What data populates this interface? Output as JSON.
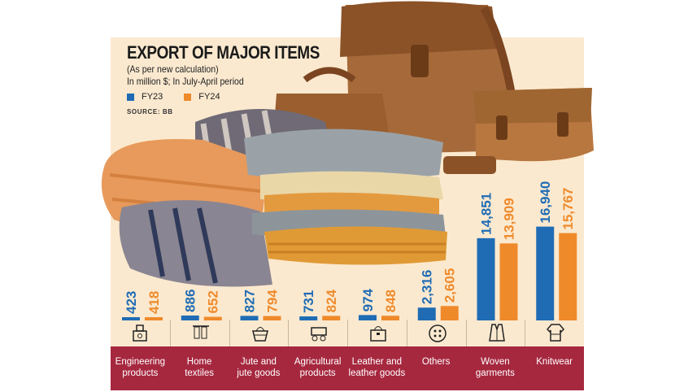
{
  "title": "EXPORT OF MAJOR ITEMS",
  "subtitle_1": "(As per new calculation)",
  "subtitle_2": "In million $; In July-April period",
  "source": "SOURCE: BB",
  "colors": {
    "fy23": "#1f6cb5",
    "fy24": "#ef8a2b",
    "band": "#a6283f",
    "panel": "#fbe9cf"
  },
  "icons": [
    "factory-icon",
    "towel-rack-icon",
    "jute-basket-icon",
    "farm-cart-icon",
    "handbag-icon",
    "button-icon",
    "vest-icon",
    "sweater-icon"
  ],
  "chart_data": {
    "type": "bar",
    "title": "EXPORT OF MAJOR ITEMS",
    "subtitle": "(As per new calculation) In million $; In July-April period",
    "categories_lines": [
      [
        "Engineering",
        "products"
      ],
      [
        "Home",
        "textiles"
      ],
      [
        "Jute and",
        "jute goods"
      ],
      [
        "Agricultural",
        "products"
      ],
      [
        "Leather and",
        "leather goods"
      ],
      [
        "Others"
      ],
      [
        "Woven",
        "garments"
      ],
      [
        "Knitwear"
      ]
    ],
    "categories": [
      "Engineering products",
      "Home textiles",
      "Jute and jute goods",
      "Agricultural products",
      "Leather and leather goods",
      "Others",
      "Woven garments",
      "Knitwear"
    ],
    "series": [
      {
        "name": "FY23",
        "values": [
          423,
          886,
          827,
          731,
          974,
          2316,
          14851,
          16940
        ],
        "labels": [
          "423",
          "886",
          "827",
          "731",
          "974",
          "2,316",
          "14,851",
          "16,940"
        ]
      },
      {
        "name": "FY24",
        "values": [
          418,
          652,
          794,
          824,
          848,
          2605,
          13909,
          15767
        ],
        "labels": [
          "418",
          "652",
          "794",
          "824",
          "848",
          "2,605",
          "13,909",
          "15,767"
        ]
      }
    ],
    "legend_position": "top-left",
    "grid": false
  }
}
